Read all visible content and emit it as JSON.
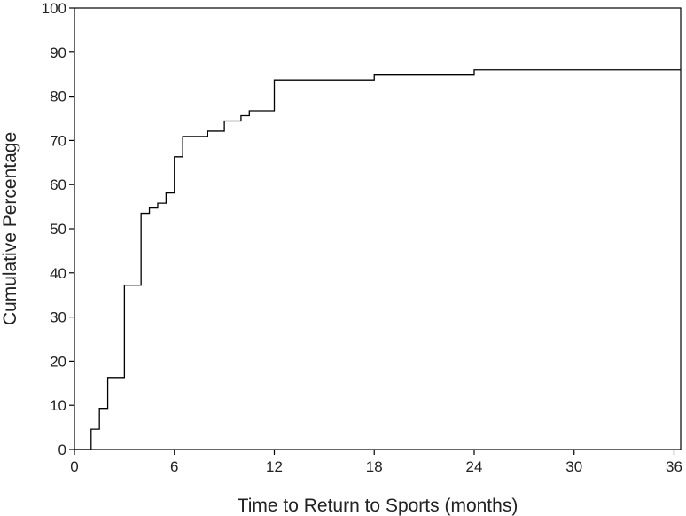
{
  "chart_data": {
    "type": "line",
    "subtype": "step",
    "xlabel": "Time to Return to Sports (months)",
    "ylabel": "Cumulative Percentage",
    "xlim": [
      0,
      36.4
    ],
    "ylim": [
      0,
      100
    ],
    "xticks": [
      0,
      6,
      12,
      18,
      24,
      30,
      36
    ],
    "yticks": [
      0,
      10,
      20,
      30,
      40,
      50,
      60,
      70,
      80,
      90,
      100
    ],
    "grid": false,
    "series": [
      {
        "x": [
          0,
          1,
          1.5,
          2,
          3,
          4,
          4.5,
          5,
          5.5,
          6,
          6.5,
          8,
          9,
          10,
          10.5,
          12,
          18,
          24,
          36.4
        ],
        "y": [
          0,
          4.6,
          9.3,
          16.3,
          37.2,
          53.5,
          54.7,
          55.8,
          58.1,
          66.3,
          70.9,
          72.1,
          74.4,
          75.6,
          76.7,
          83.7,
          84.8,
          86.0,
          86.0
        ]
      }
    ]
  }
}
